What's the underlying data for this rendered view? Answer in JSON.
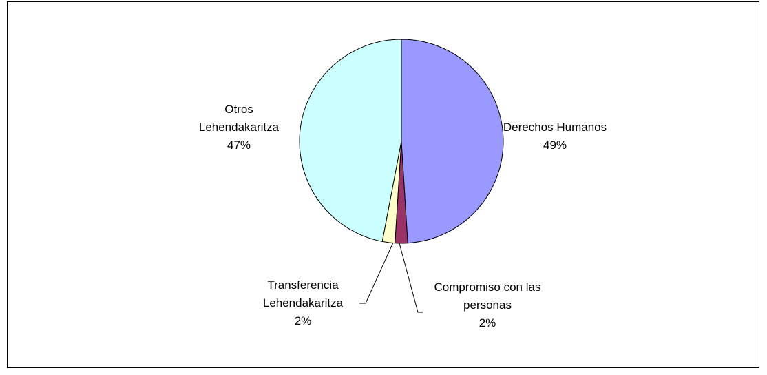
{
  "chart_data": {
    "type": "pie",
    "categories": [
      "Derechos Humanos",
      "Compromiso con las personas",
      "Transferencia Lehendakaritza",
      "Otros Lehendakaritza"
    ],
    "values": [
      49,
      2,
      2,
      47
    ],
    "value_labels": [
      "49%",
      "2%",
      "2%",
      "47%"
    ],
    "colors": [
      "#9999ff",
      "#993366",
      "#ffffcc",
      "#ccffff"
    ]
  }
}
